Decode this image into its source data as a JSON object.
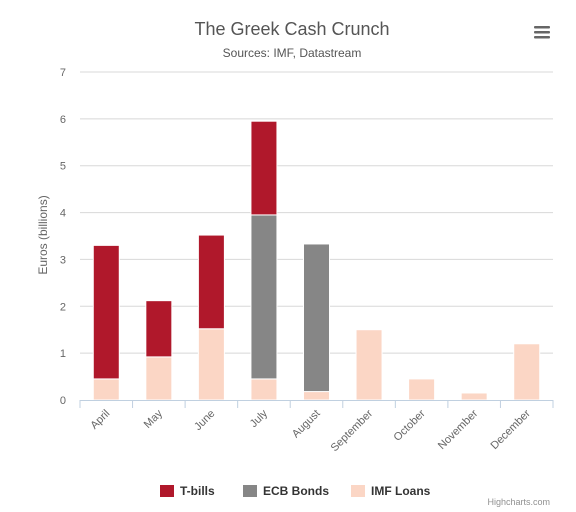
{
  "chart_data": {
    "type": "bar",
    "stacked": true,
    "title": "The Greek Cash Crunch",
    "subtitle": "Sources: IMF, Datastream",
    "xlabel": "",
    "ylabel": "Euros (billions)",
    "ylim": [
      0,
      7
    ],
    "yticks": [
      "0",
      "1",
      "2",
      "3",
      "4",
      "5",
      "6",
      "7"
    ],
    "grid": true,
    "legend_position": "bottom-center",
    "categories": [
      "April",
      "May",
      "June",
      "July",
      "August",
      "September",
      "October",
      "November",
      "December"
    ],
    "series": [
      {
        "name": "T-bills",
        "color": "#b0182b",
        "values": [
          2.85,
          1.2,
          2.0,
          2.0,
          0,
          0,
          0,
          0,
          0
        ]
      },
      {
        "name": "ECB Bonds",
        "color": "#868686",
        "values": [
          0,
          0,
          0,
          3.5,
          3.15,
          0,
          0,
          0,
          0
        ]
      },
      {
        "name": "IMF Loans",
        "color": "#fbd6c5",
        "values": [
          0.45,
          0.92,
          1.52,
          0.45,
          0.18,
          1.5,
          0.45,
          0.15,
          1.2
        ]
      }
    ],
    "stack_order_bottom_to_top": [
      "IMF Loans",
      "ECB Bonds",
      "T-bills"
    ]
  },
  "credits": "Highcharts.com",
  "menu_icon": "hamburger-menu-icon"
}
